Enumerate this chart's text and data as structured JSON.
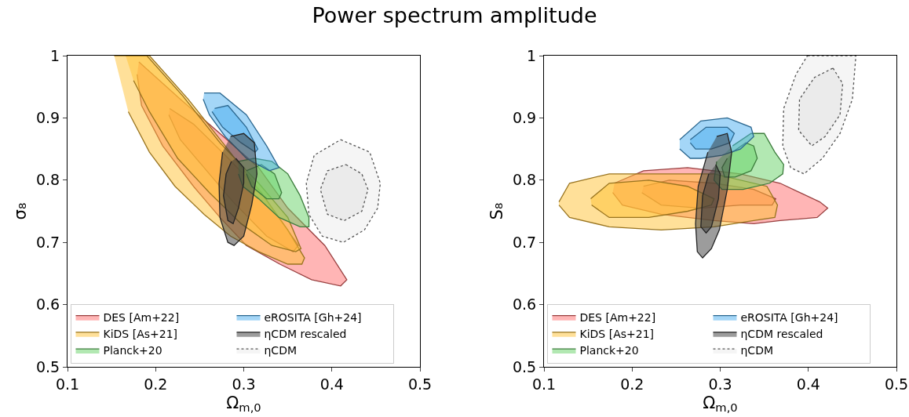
{
  "chart_data": [
    {
      "type": "area",
      "title": "Power spectrum amplitude",
      "xlabel": "Ω$_{m,0}$",
      "ylabel": "σ₈",
      "xlim": [
        0.1,
        0.5
      ],
      "xticks": [
        0.1,
        0.2,
        0.3,
        0.4,
        0.5
      ],
      "ylim": [
        0.5,
        1.0
      ],
      "yticks": [
        0.5,
        0.6,
        0.7,
        0.8,
        0.9,
        1.0
      ],
      "grid": false,
      "legend": "bottom left",
      "series": [
        {
          "name": "DES [Am+22]",
          "color": "#ff6b6b",
          "x": [
            0.181,
            0.228,
            0.273,
            0.317,
            0.35,
            0.392,
            0.417,
            0.41,
            0.377,
            0.341,
            0.303,
            0.273,
            0.243,
            0.208,
            0.184,
            0.179
          ],
          "values": [
            0.99,
            0.93,
            0.875,
            0.82,
            0.755,
            0.695,
            0.64,
            0.63,
            0.64,
            0.665,
            0.695,
            0.74,
            0.79,
            0.855,
            0.92,
            0.97
          ]
        },
        {
          "color": "#ff6b6b",
          "x": [
            0.216,
            0.243,
            0.279,
            0.32,
            0.362,
            0.356,
            0.326,
            0.288,
            0.261,
            0.228,
            0.215
          ],
          "values": [
            0.915,
            0.89,
            0.84,
            0.78,
            0.695,
            0.685,
            0.71,
            0.765,
            0.81,
            0.865,
            0.905
          ]
        },
        {
          "name": "KiDS [As+21]",
          "color": "#ffc233",
          "x": [
            0.153,
            0.193,
            0.237,
            0.279,
            0.317,
            0.35,
            0.369,
            0.366,
            0.35,
            0.317,
            0.285,
            0.255,
            0.222,
            0.193,
            0.169
          ],
          "values": [
            1.0,
            1.0,
            0.93,
            0.855,
            0.785,
            0.72,
            0.675,
            0.665,
            0.665,
            0.685,
            0.71,
            0.745,
            0.79,
            0.845,
            0.91
          ]
        },
        {
          "color": "#ffc233",
          "x": [
            0.166,
            0.19,
            0.231,
            0.273,
            0.317,
            0.35,
            0.365,
            0.359,
            0.332,
            0.297,
            0.261,
            0.225,
            0.193,
            0.175
          ],
          "values": [
            1.0,
            1.0,
            0.935,
            0.86,
            0.795,
            0.74,
            0.69,
            0.685,
            0.695,
            0.73,
            0.78,
            0.835,
            0.91,
            0.96
          ]
        },
        {
          "name": "Planck+20",
          "color": "#66d166",
          "x": [
            0.294,
            0.312,
            0.332,
            0.35,
            0.364,
            0.374,
            0.374,
            0.364,
            0.34,
            0.317,
            0.299,
            0.294
          ],
          "values": [
            0.83,
            0.835,
            0.83,
            0.81,
            0.775,
            0.74,
            0.725,
            0.725,
            0.74,
            0.77,
            0.79,
            0.81
          ]
        },
        {
          "color": "#66d166",
          "x": [
            0.303,
            0.32,
            0.335,
            0.343,
            0.34,
            0.326,
            0.309,
            0.303
          ],
          "values": [
            0.815,
            0.825,
            0.81,
            0.78,
            0.77,
            0.77,
            0.79,
            0.81
          ]
        },
        {
          "name": "eROSITA [Gh+24]",
          "color": "#4aaef0",
          "x": [
            0.255,
            0.273,
            0.303,
            0.326,
            0.34,
            0.329,
            0.303,
            0.279,
            0.261,
            0.254
          ],
          "values": [
            0.94,
            0.94,
            0.905,
            0.855,
            0.82,
            0.815,
            0.835,
            0.87,
            0.905,
            0.93
          ]
        },
        {
          "color": "#4aaef0",
          "x": [
            0.267,
            0.282,
            0.303,
            0.316,
            0.313,
            0.297,
            0.276,
            0.264
          ],
          "values": [
            0.915,
            0.92,
            0.885,
            0.85,
            0.845,
            0.86,
            0.885,
            0.91
          ]
        },
        {
          "name": "ηCDM rescaled",
          "color": "#3a3a3a",
          "x": [
            0.285,
            0.3,
            0.312,
            0.315,
            0.309,
            0.3,
            0.289,
            0.282,
            0.273,
            0.272,
            0.276
          ],
          "values": [
            0.87,
            0.875,
            0.86,
            0.81,
            0.76,
            0.71,
            0.695,
            0.7,
            0.74,
            0.795,
            0.845
          ]
        },
        {
          "color": "#3a3a3a",
          "x": [
            0.291,
            0.3,
            0.3,
            0.294,
            0.288,
            0.282,
            0.277,
            0.28,
            0.286
          ],
          "values": [
            0.835,
            0.82,
            0.795,
            0.755,
            0.73,
            0.735,
            0.775,
            0.81,
            0.83
          ]
        },
        {
          "name": "ηCDM",
          "type": "area",
          "line_style": "dotted",
          "color": "#555555",
          "x": [
            0.41,
            0.443,
            0.455,
            0.452,
            0.437,
            0.413,
            0.389,
            0.374,
            0.371,
            0.38,
            0.41
          ],
          "values": [
            0.865,
            0.845,
            0.795,
            0.755,
            0.72,
            0.7,
            0.71,
            0.745,
            0.795,
            0.84,
            0.865
          ]
        },
        {
          "type": "area",
          "line_style": "dotted",
          "color": "#555555",
          "x": [
            0.416,
            0.434,
            0.441,
            0.434,
            0.414,
            0.395,
            0.387,
            0.395,
            0.416
          ],
          "values": [
            0.825,
            0.81,
            0.785,
            0.75,
            0.735,
            0.745,
            0.785,
            0.815,
            0.825
          ]
        }
      ]
    },
    {
      "type": "area",
      "xlabel": "Ω$_{m,0}$",
      "ylabel": "S₈",
      "xlim": [
        0.1,
        0.5
      ],
      "xticks": [
        0.1,
        0.2,
        0.3,
        0.4,
        0.5
      ],
      "ylim": [
        0.5,
        1.0
      ],
      "yticks": [
        0.5,
        0.6,
        0.7,
        0.8,
        0.9,
        1.0
      ],
      "grid": false,
      "legend": "bottom left",
      "series": [
        {
          "name": "DES [Am+22]",
          "color": "#ff6b6b",
          "x": [
            0.18,
            0.213,
            0.263,
            0.323,
            0.368,
            0.413,
            0.422,
            0.41,
            0.368,
            0.338,
            0.293,
            0.233,
            0.189,
            0.178
          ],
          "values": [
            0.795,
            0.815,
            0.82,
            0.81,
            0.795,
            0.765,
            0.755,
            0.74,
            0.735,
            0.73,
            0.735,
            0.745,
            0.76,
            0.78
          ]
        },
        {
          "color": "#ff6b6b",
          "x": [
            0.213,
            0.242,
            0.293,
            0.338,
            0.363,
            0.359,
            0.323,
            0.278,
            0.233,
            0.211
          ],
          "values": [
            0.79,
            0.8,
            0.795,
            0.785,
            0.77,
            0.76,
            0.76,
            0.755,
            0.76,
            0.78
          ]
        },
        {
          "name": "KiDS [As+21]",
          "color": "#ffc233",
          "x": [
            0.117,
            0.129,
            0.174,
            0.233,
            0.293,
            0.353,
            0.365,
            0.362,
            0.338,
            0.293,
            0.233,
            0.174,
            0.129,
            0.117
          ],
          "values": [
            0.765,
            0.795,
            0.81,
            0.81,
            0.81,
            0.79,
            0.76,
            0.74,
            0.735,
            0.725,
            0.72,
            0.725,
            0.74,
            0.76
          ]
        },
        {
          "color": "#ffc233",
          "x": [
            0.153,
            0.174,
            0.219,
            0.263,
            0.293,
            0.29,
            0.263,
            0.219,
            0.174,
            0.154
          ],
          "values": [
            0.77,
            0.795,
            0.8,
            0.79,
            0.77,
            0.76,
            0.75,
            0.74,
            0.74,
            0.76
          ]
        },
        {
          "name": "Planck+20",
          "color": "#66d166",
          "x": [
            0.314,
            0.335,
            0.35,
            0.362,
            0.372,
            0.371,
            0.356,
            0.326,
            0.302,
            0.293,
            0.296
          ],
          "values": [
            0.855,
            0.875,
            0.875,
            0.845,
            0.825,
            0.81,
            0.795,
            0.785,
            0.785,
            0.8,
            0.83
          ]
        },
        {
          "color": "#66d166",
          "x": [
            0.314,
            0.329,
            0.338,
            0.342,
            0.335,
            0.317,
            0.305,
            0.302,
            0.308
          ],
          "values": [
            0.845,
            0.86,
            0.855,
            0.835,
            0.815,
            0.805,
            0.805,
            0.82,
            0.835
          ]
        },
        {
          "name": "eROSITA [Gh+24]",
          "color": "#4aaef0",
          "x": [
            0.254,
            0.278,
            0.308,
            0.335,
            0.338,
            0.323,
            0.302,
            0.278,
            0.266,
            0.254
          ],
          "values": [
            0.865,
            0.895,
            0.9,
            0.885,
            0.87,
            0.85,
            0.84,
            0.835,
            0.835,
            0.85
          ]
        },
        {
          "color": "#4aaef0",
          "x": [
            0.266,
            0.284,
            0.308,
            0.316,
            0.311,
            0.29,
            0.272,
            0.266
          ],
          "values": [
            0.865,
            0.885,
            0.885,
            0.875,
            0.86,
            0.85,
            0.85,
            0.86
          ]
        },
        {
          "name": "ηCDM rescaled",
          "color": "#3a3a3a",
          "x": [
            0.296,
            0.308,
            0.313,
            0.308,
            0.299,
            0.29,
            0.28,
            0.274,
            0.272,
            0.275,
            0.286
          ],
          "values": [
            0.87,
            0.875,
            0.845,
            0.785,
            0.72,
            0.69,
            0.675,
            0.685,
            0.73,
            0.79,
            0.845
          ]
        },
        {
          "color": "#3a3a3a",
          "x": [
            0.295,
            0.3,
            0.298,
            0.29,
            0.284,
            0.278,
            0.28,
            0.287
          ],
          "values": [
            0.825,
            0.81,
            0.77,
            0.725,
            0.715,
            0.725,
            0.775,
            0.81
          ]
        },
        {
          "name": "ηCDM",
          "type": "area",
          "line_style": "dotted",
          "color": "#555555",
          "x": [
            0.399,
            0.454,
            0.45,
            0.436,
            0.416,
            0.395,
            0.38,
            0.371,
            0.372,
            0.386,
            0.399
          ],
          "values": [
            1.0,
            1.0,
            0.93,
            0.875,
            0.835,
            0.81,
            0.82,
            0.855,
            0.915,
            0.97,
            1.0
          ]
        },
        {
          "type": "area",
          "line_style": "dotted",
          "color": "#555555",
          "x": [
            0.428,
            0.439,
            0.436,
            0.419,
            0.404,
            0.389,
            0.39,
            0.407,
            0.428
          ],
          "values": [
            0.98,
            0.955,
            0.905,
            0.87,
            0.855,
            0.88,
            0.93,
            0.965,
            0.98
          ]
        }
      ]
    }
  ]
}
